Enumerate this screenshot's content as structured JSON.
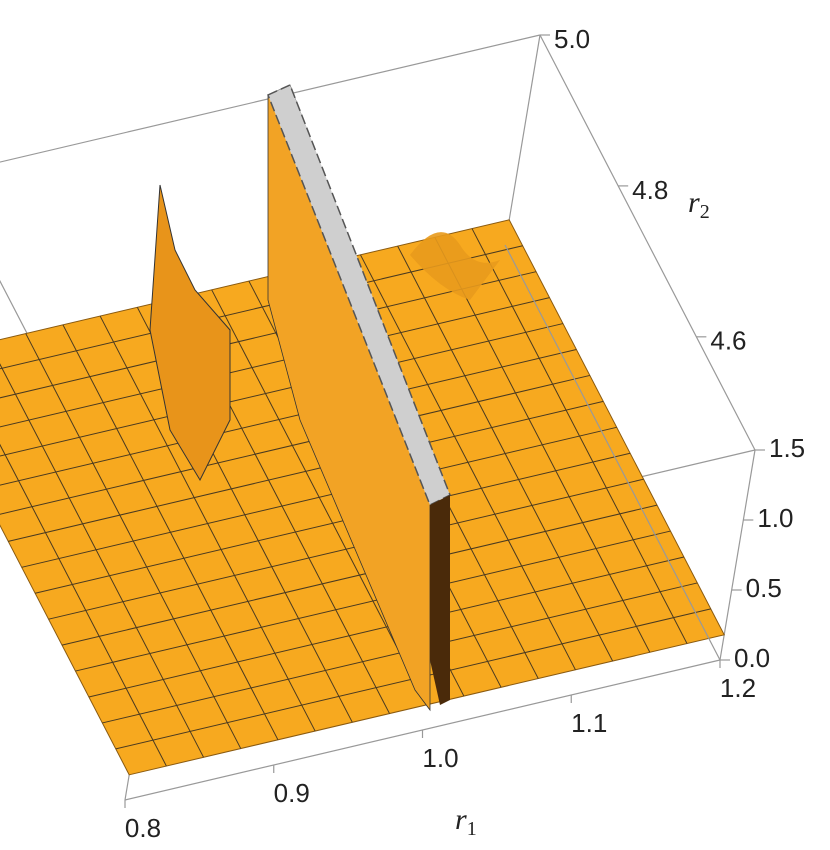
{
  "chart_data": {
    "type": "surface3d",
    "xlabel": {
      "text": "r",
      "sub": "1"
    },
    "ylabel": {
      "text": "r",
      "sub": "2"
    },
    "xlim": [
      0.8,
      1.2
    ],
    "xticks": [
      0.8,
      0.9,
      {
        "value": 1.0,
        "label": "1.0"
      },
      1.1,
      1.2
    ],
    "ylim": [
      4.45,
      5.0
    ],
    "yticks": [
      4.6,
      4.8,
      {
        "value": 5.0,
        "label": "5.0"
      }
    ],
    "zlim": [
      0,
      1.5
    ],
    "zticks": [
      {
        "value": 0,
        "label": "0.0"
      },
      0.5,
      {
        "value": 1.0,
        "label": "1.0"
      },
      1.5
    ],
    "color": "#f7a91f"
  }
}
